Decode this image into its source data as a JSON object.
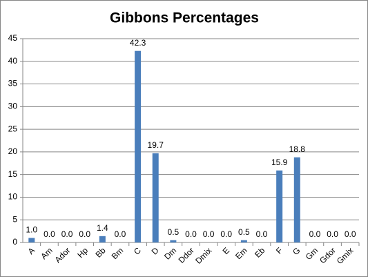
{
  "chart_data": {
    "type": "bar",
    "title": "Gibbons Percentages",
    "categories": [
      "A",
      "Am",
      "Ador",
      "Hp",
      "Bb",
      "Bm",
      "C",
      "D",
      "Dm",
      "Ddor",
      "Dmix",
      "E",
      "Em",
      "Eb",
      "F",
      "G",
      "Gm",
      "Gdor",
      "Gmix"
    ],
    "values": [
      1.0,
      0,
      0,
      0,
      1.4,
      0,
      42.3,
      19.7,
      0.5,
      0,
      0,
      0,
      0.5,
      0,
      15.9,
      18.8,
      0,
      0,
      0
    ],
    "value_labels": [
      "1.0",
      "0.0",
      "0.0",
      "0.0",
      "1.4",
      "0.0",
      "42.3",
      "19.7",
      "0.5",
      "0.0",
      "0.0",
      "0.0",
      "0.5",
      "0.0",
      "15.9",
      "18.8",
      "0.0",
      "0.0",
      "0.0"
    ],
    "color": "#4a7ebb",
    "ylim": [
      0,
      45
    ],
    "yticks": [
      0,
      5,
      10,
      15,
      20,
      25,
      30,
      35,
      40,
      45
    ],
    "grid": true
  }
}
